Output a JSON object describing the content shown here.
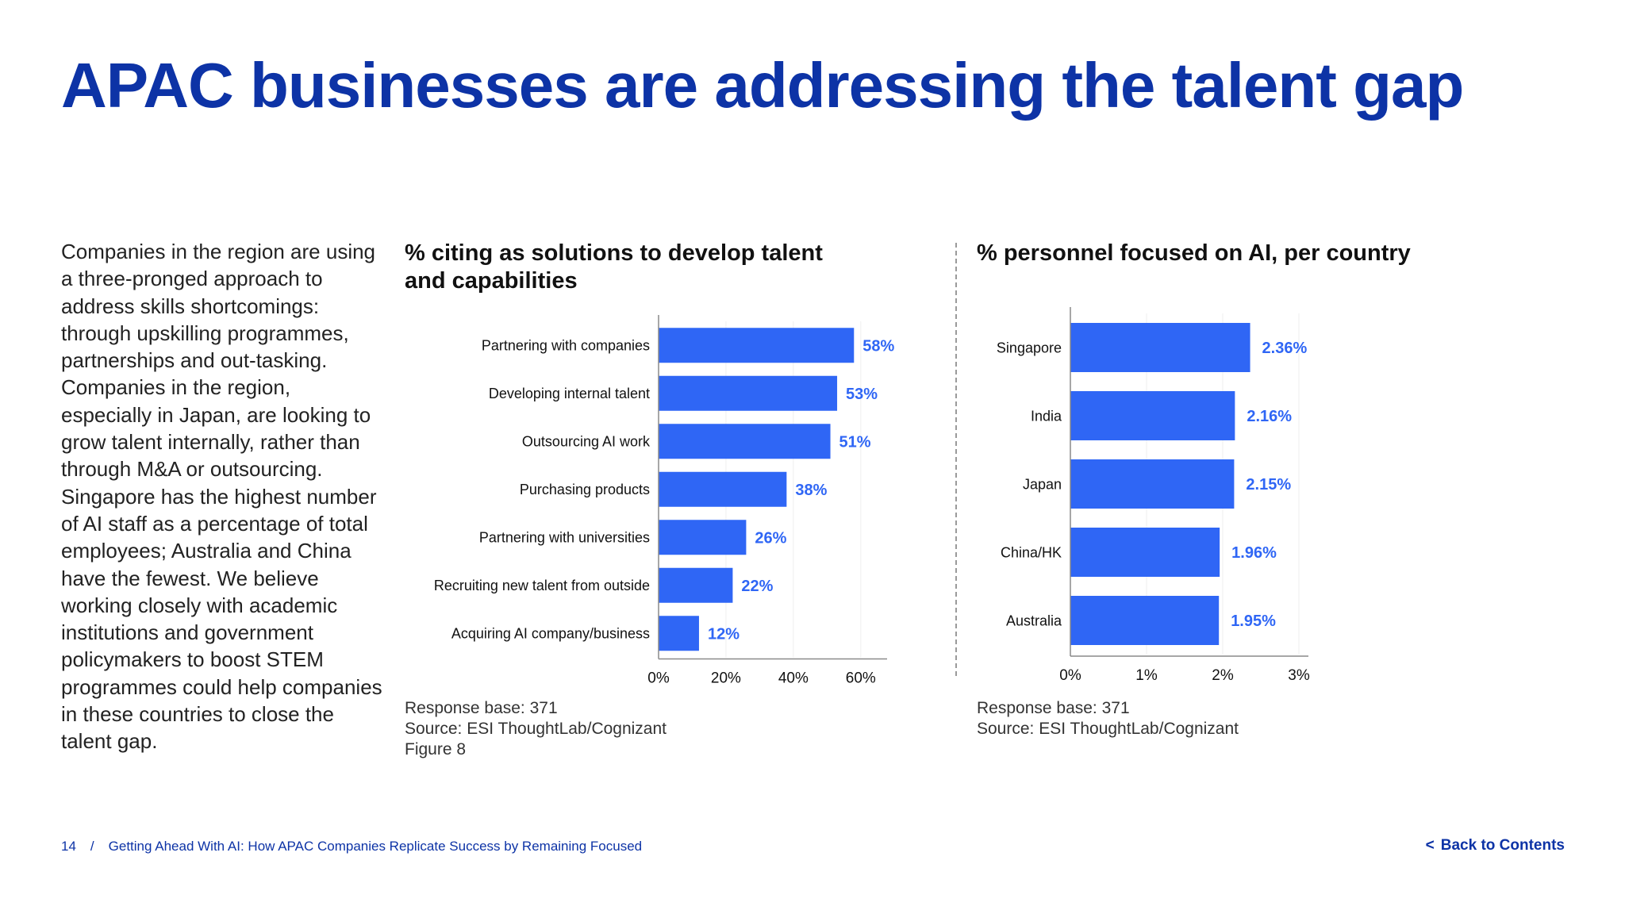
{
  "title": "APAC businesses are addressing the talent gap",
  "intro": "Companies in the region are using a three-pronged approach to address skills shortcomings: through upskilling programmes, partnerships and out-tasking. Companies in the region, especially in Japan, are looking to grow talent internally, rather than through M&A or outsourcing. Singapore has the highest number of AI staff as a percentage of total employees; Australia and China have the fewest. We believe working closely with academic institutions and government policymakers to boost STEM programmes could help companies in these countries to close the talent gap.",
  "colors": {
    "accent": "#0d33a6",
    "bar": "#2f66f5",
    "label": "#2f66f5"
  },
  "chart_data": [
    {
      "type": "bar",
      "orientation": "horizontal",
      "title": "% citing as solutions to develop talent and capabilities",
      "categories": [
        "Partnering with companies",
        "Developing internal talent",
        "Outsourcing AI work",
        "Purchasing products",
        "Partnering with universities",
        "Recruiting new talent from outside",
        "Acquiring AI company/business"
      ],
      "values": [
        58,
        53,
        51,
        38,
        26,
        22,
        12
      ],
      "value_labels": [
        "58%",
        "53%",
        "51%",
        "38%",
        "26%",
        "22%",
        "12%"
      ],
      "xlim": [
        0,
        65
      ],
      "ticks": [
        0,
        20,
        40,
        60
      ],
      "tick_labels": [
        "0%",
        "20%",
        "40%",
        "60%"
      ],
      "notes": [
        "Response base: 371",
        "Source: ESI ThoughtLab/Cognizant",
        "Figure 8"
      ]
    },
    {
      "type": "bar",
      "orientation": "horizontal",
      "title": "% personnel focused on AI, per country",
      "categories": [
        "Singapore",
        "India",
        "Japan",
        "China/HK",
        "Australia"
      ],
      "values": [
        2.36,
        2.16,
        2.15,
        1.96,
        1.95
      ],
      "value_labels": [
        "2.36%",
        "2.16%",
        "2.15%",
        "1.96%",
        "1.95%"
      ],
      "xlim": [
        0,
        3
      ],
      "ticks": [
        0,
        1,
        2,
        3
      ],
      "tick_labels": [
        "0%",
        "1%",
        "2%",
        "3%"
      ],
      "notes": [
        "Response base: 371",
        "Source: ESI ThoughtLab/Cognizant"
      ]
    }
  ],
  "footer": {
    "page_number": "14",
    "separator": "/",
    "doc_title": "Getting Ahead With AI: How APAC Companies Replicate Success by Remaining Focused"
  },
  "back_link": {
    "chevron": "<",
    "label": "Back to Contents"
  }
}
